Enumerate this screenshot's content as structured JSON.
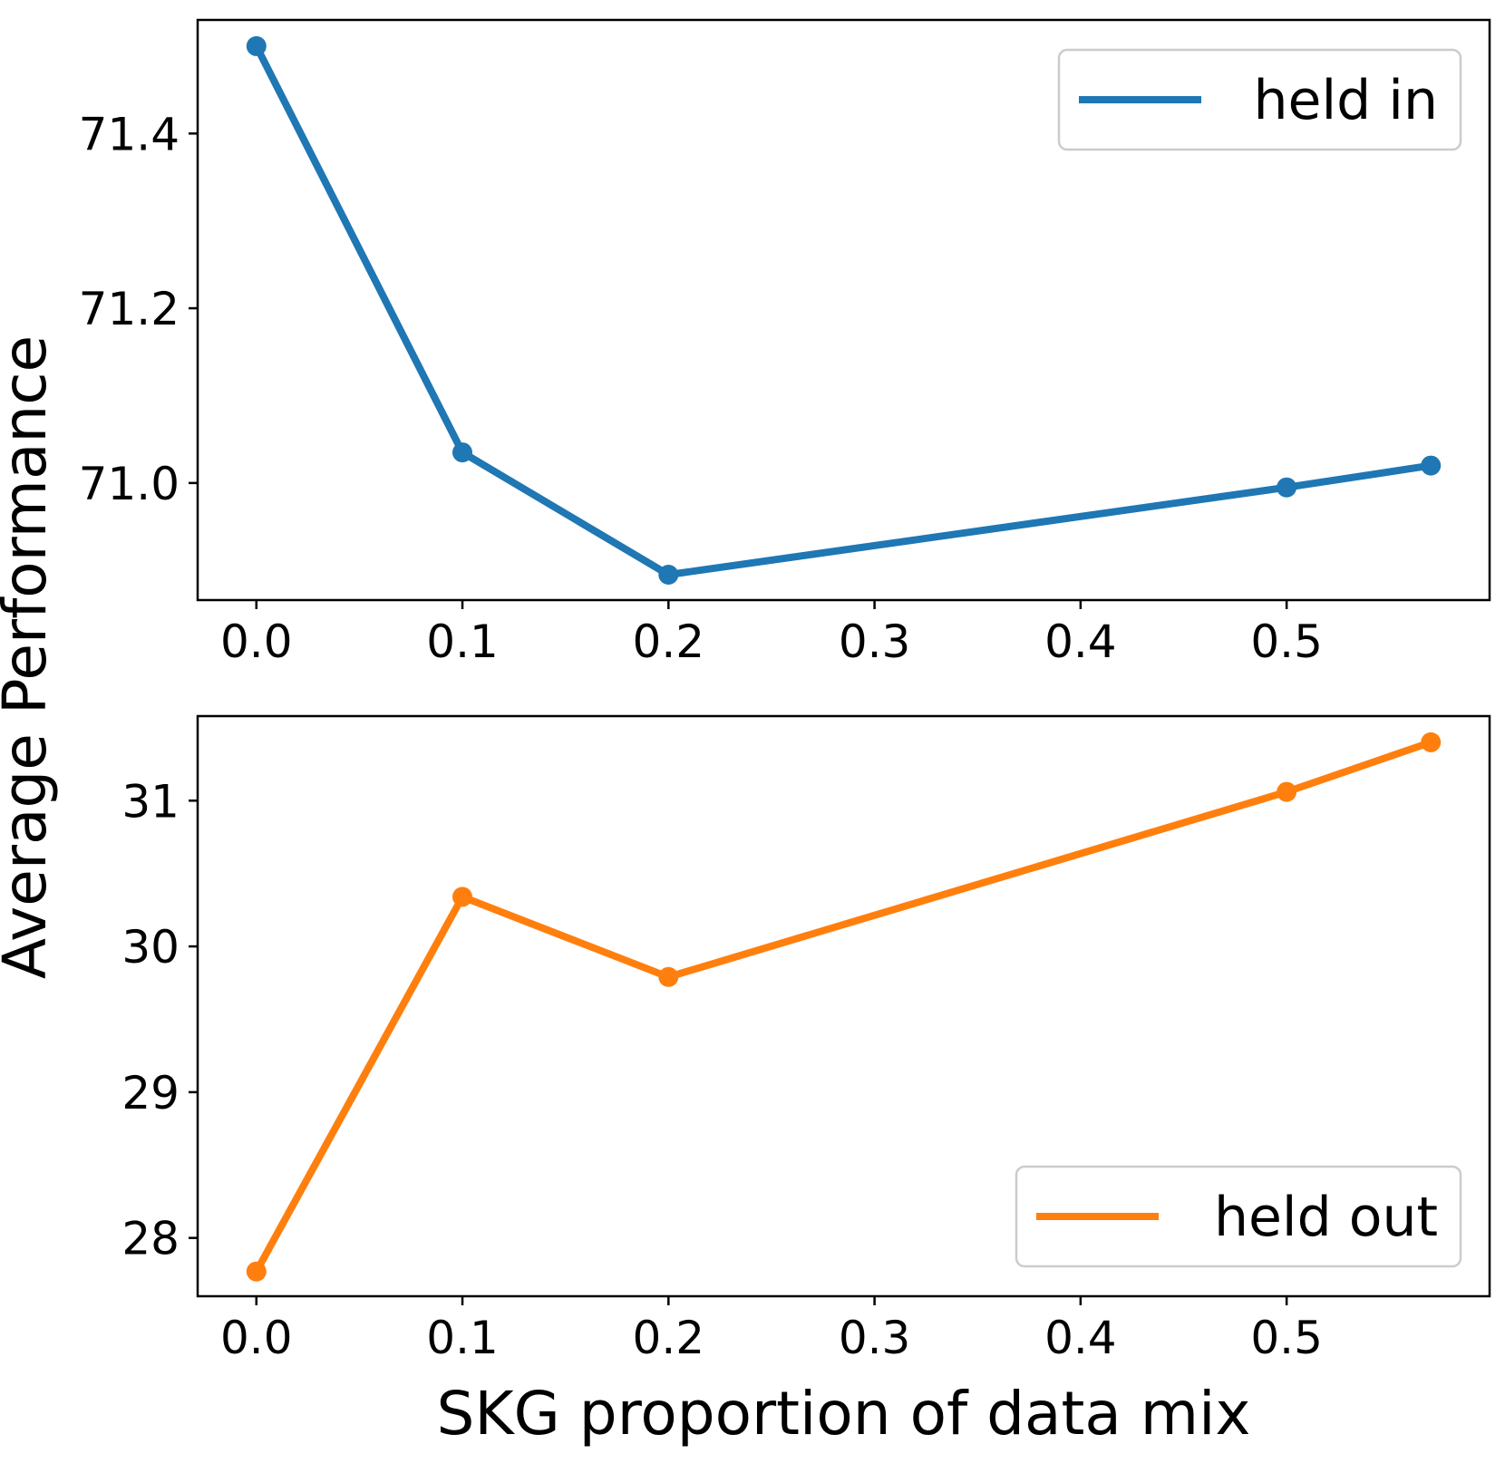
{
  "chart_data": {
    "type": "line",
    "shared_ylabel": "Average Performance",
    "subplots": [
      {
        "name": "held-in",
        "xlabel": "",
        "x": [
          0.0,
          0.1,
          0.2,
          0.5,
          0.57
        ],
        "series": [
          {
            "name": "held in",
            "color": "#1f77b4",
            "values": [
              71.5,
              71.035,
              70.895,
              70.995,
              71.02
            ]
          }
        ],
        "xlim": [
          -0.0285,
          0.5985
        ],
        "ylim": [
          70.866,
          71.53
        ],
        "xticks": [
          0.0,
          0.1,
          0.2,
          0.3,
          0.4,
          0.5
        ],
        "xtick_labels": [
          "0.0",
          "0.1",
          "0.2",
          "0.3",
          "0.4",
          "0.5"
        ],
        "yticks": [
          71.0,
          71.2,
          71.4
        ],
        "ytick_labels": [
          "71.0",
          "71.2",
          "71.4"
        ],
        "legend_position": "upper right"
      },
      {
        "name": "held-out",
        "xlabel": "SKG proportion of data mix",
        "x": [
          0.0,
          0.1,
          0.2,
          0.5,
          0.57
        ],
        "series": [
          {
            "name": "held out",
            "color": "#ff7f0e",
            "values": [
              27.77,
              30.34,
              29.79,
              31.06,
              31.4
            ]
          }
        ],
        "xlim": [
          -0.0285,
          0.5985
        ],
        "ylim": [
          27.6,
          31.58
        ],
        "xticks": [
          0.0,
          0.1,
          0.2,
          0.3,
          0.4,
          0.5
        ],
        "xtick_labels": [
          "0.0",
          "0.1",
          "0.2",
          "0.3",
          "0.4",
          "0.5"
        ],
        "yticks": [
          28,
          29,
          30,
          31
        ],
        "ytick_labels": [
          "28",
          "29",
          "30",
          "31"
        ],
        "legend_position": "lower right"
      }
    ]
  }
}
